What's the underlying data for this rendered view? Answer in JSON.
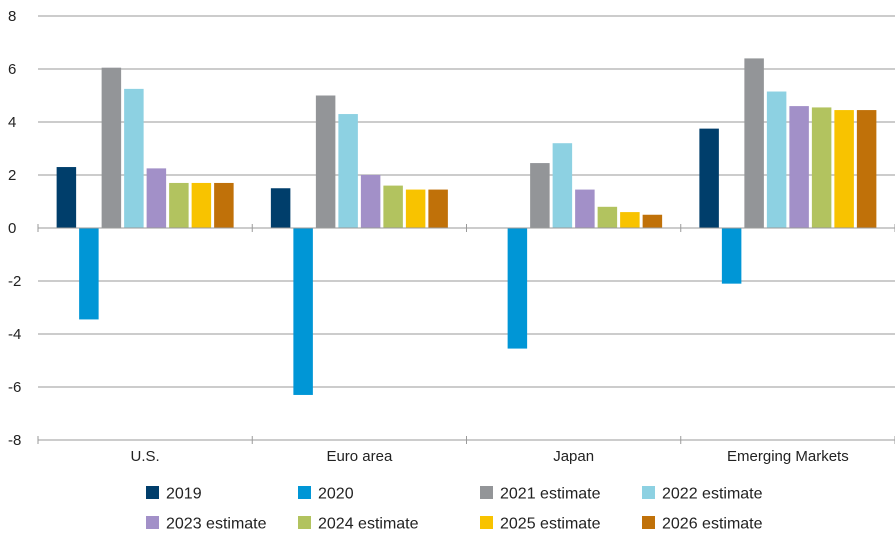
{
  "chart_data": {
    "type": "bar",
    "categories": [
      "U.S.",
      "Euro area",
      "Japan",
      "Emerging Markets"
    ],
    "ylim": [
      -8,
      8
    ],
    "yticks": [
      -8,
      -6,
      -4,
      -2,
      0,
      2,
      4,
      6,
      8
    ],
    "grid": true,
    "legend_position": "bottom",
    "series": [
      {
        "name": "2019",
        "color": "#003e6b",
        "values": [
          2.3,
          1.5,
          null,
          3.75
        ]
      },
      {
        "name": "2020",
        "color": "#0096d6",
        "values": [
          -3.45,
          -6.3,
          -4.55,
          -2.1
        ]
      },
      {
        "name": "2021 estimate",
        "color": "#939598",
        "values": [
          6.05,
          5.0,
          2.45,
          6.4
        ]
      },
      {
        "name": "2022 estimate",
        "color": "#8dd1e2",
        "values": [
          5.25,
          4.3,
          3.2,
          5.15
        ]
      },
      {
        "name": "2023 estimate",
        "color": "#a290c8",
        "values": [
          2.25,
          2.0,
          1.45,
          4.6
        ]
      },
      {
        "name": "2024 estimate",
        "color": "#b2c35f",
        "values": [
          1.7,
          1.6,
          0.8,
          4.55
        ]
      },
      {
        "name": "2025 estimate",
        "color": "#f8c300",
        "values": [
          1.7,
          1.45,
          0.6,
          4.45
        ]
      },
      {
        "name": "2026 estimate",
        "color": "#c07109",
        "values": [
          1.7,
          1.45,
          0.5,
          4.45
        ]
      }
    ]
  }
}
